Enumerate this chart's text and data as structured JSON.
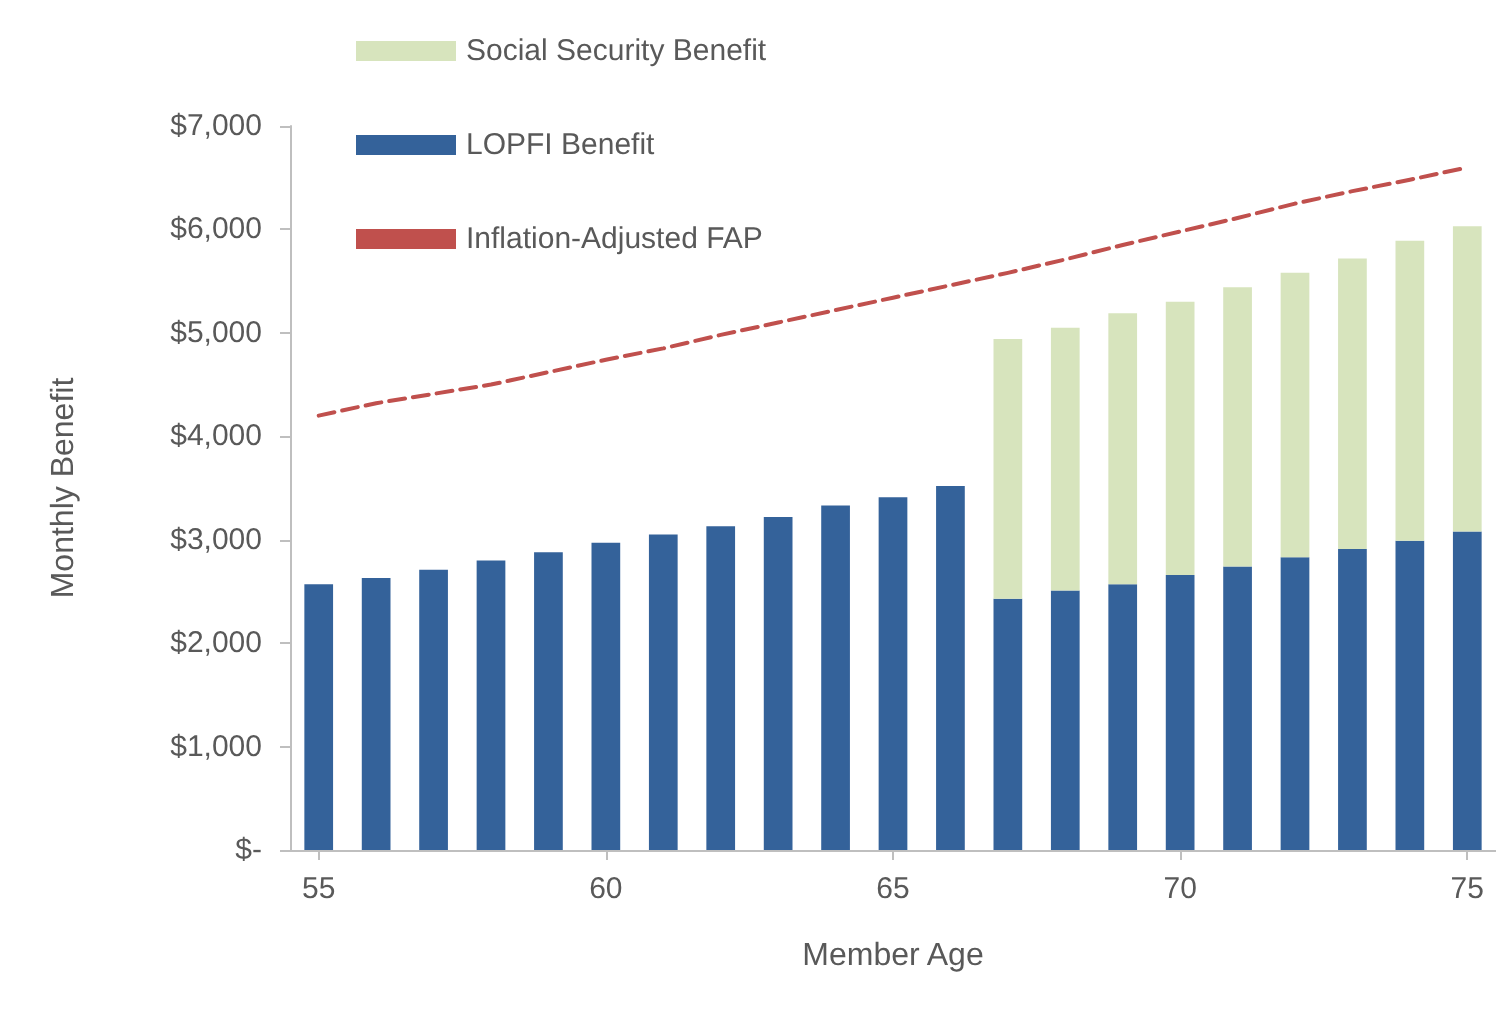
{
  "chart_data": {
    "type": "bar",
    "stacked": true,
    "xlabel": "Member Age",
    "ylabel": "Monthly Benefit",
    "categories": [
      "55",
      null,
      null,
      null,
      null,
      "60",
      null,
      null,
      null,
      null,
      "65",
      null,
      null,
      null,
      null,
      "70",
      null,
      null,
      null,
      null,
      "75"
    ],
    "series": [
      {
        "name": "LOPFI Benefit",
        "color": "#34629a",
        "values": [
          2570,
          2630,
          2710,
          2800,
          2880,
          2970,
          3050,
          3130,
          3220,
          3330,
          3410,
          3520,
          2430,
          2510,
          2570,
          2660,
          2740,
          2830,
          2910,
          2990,
          3080
        ]
      },
      {
        "name": "Social Security Benefit",
        "color": "#d7e4bd",
        "values": [
          null,
          null,
          null,
          null,
          null,
          null,
          null,
          null,
          null,
          null,
          null,
          null,
          2510,
          2540,
          2620,
          2640,
          2700,
          2750,
          2810,
          2900,
          2950
        ]
      },
      {
        "name": "Inflation-Adjusted FAP",
        "type": "line",
        "line_style": "dashed",
        "marker": "none",
        "color": "#c0504d",
        "values": [
          4200,
          4320,
          4410,
          4500,
          4620,
          4740,
          4850,
          4980,
          5100,
          5220,
          5340,
          5460,
          5580,
          5710,
          5850,
          5980,
          6110,
          6250,
          6370,
          6480,
          6600
        ]
      }
    ],
    "ylim": [
      0,
      7000
    ],
    "yticks": [
      {
        "value": 0,
        "label": "$-"
      },
      {
        "value": 1000,
        "label": "$1,000"
      },
      {
        "value": 2000,
        "label": "$2,000"
      },
      {
        "value": 3000,
        "label": "$3,000"
      },
      {
        "value": 4000,
        "label": "$4,000"
      },
      {
        "value": 5000,
        "label": "$5,000"
      },
      {
        "value": 6000,
        "label": "$6,000"
      },
      {
        "value": 7000,
        "label": "$7,000"
      }
    ],
    "grid": false,
    "legend": "top left"
  }
}
